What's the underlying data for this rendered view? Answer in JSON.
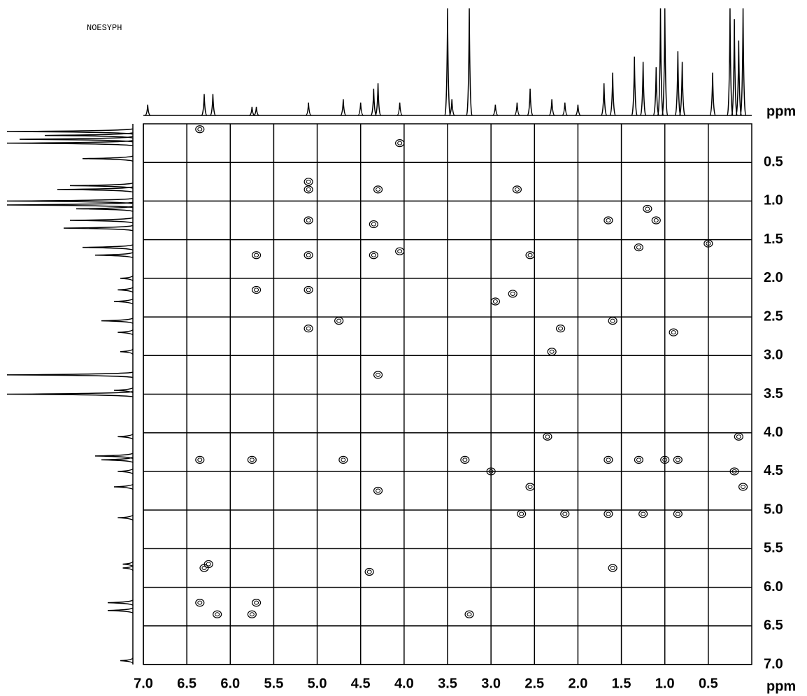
{
  "chart_data": {
    "type": "nmr2d",
    "title": "NOESYPH",
    "xlabel": "ppm",
    "ylabel": "ppm",
    "xlim": [
      7.0,
      0.0
    ],
    "ylim": [
      0.0,
      7.0
    ],
    "xticks": [
      {
        "value": 7,
        "label": "7.0"
      },
      6.5,
      {
        "value": 6,
        "label": "6.0"
      },
      5.5,
      {
        "value": 5,
        "label": "5.0"
      },
      4.5,
      {
        "value": 4,
        "label": "4.0"
      },
      3.5,
      {
        "value": 3,
        "label": "3.0"
      },
      2.5,
      {
        "value": 2,
        "label": "2.0"
      },
      1.5,
      {
        "value": 1,
        "label": "1.0"
      },
      0.5
    ],
    "yticks": [
      0.5,
      {
        "value": 1,
        "label": "1.0"
      },
      1.5,
      {
        "value": 2,
        "label": "2.0"
      },
      2.5,
      {
        "value": 3,
        "label": "3.0"
      },
      3.5,
      {
        "value": 4,
        "label": "4.0"
      },
      4.5,
      {
        "value": 5,
        "label": "5.0"
      },
      5.5,
      {
        "value": 6,
        "label": "6.0"
      },
      6.5,
      {
        "value": 7,
        "label": "7.0"
      }
    ],
    "grid": true,
    "color": "#000000",
    "projection": {
      "x": [
        6.95,
        6.3,
        6.2,
        5.75,
        5.7,
        5.1,
        4.7,
        4.5,
        4.35,
        4.3,
        4.05,
        3.5,
        3.45,
        3.25,
        2.95,
        2.7,
        2.55,
        2.3,
        2.15,
        2.0,
        1.7,
        1.6,
        1.35,
        1.25,
        1.1,
        1.05,
        1.0,
        0.85,
        0.8,
        0.45,
        0.25,
        0.2,
        0.15,
        0.1
      ],
      "values": [
        10,
        20,
        20,
        8,
        8,
        12,
        15,
        12,
        25,
        30,
        12,
        100,
        15,
        100,
        10,
        12,
        25,
        15,
        12,
        10,
        30,
        40,
        55,
        50,
        45,
        100,
        100,
        60,
        50,
        40,
        100,
        90,
        70,
        100
      ]
    },
    "peaks": {
      "x": [
        6.35,
        6.3,
        6.25,
        6.15,
        6.35,
        5.75,
        5.7,
        5.7,
        5.7,
        5.75,
        6.35,
        5.1,
        5.1,
        5.1,
        5.1,
        5.1,
        4.7,
        4.75,
        4.35,
        4.35,
        4.3,
        4.4,
        4.05,
        4.05,
        4.3,
        3.25,
        3.3,
        2.95,
        2.75,
        2.55,
        2.3,
        2.2,
        2.65,
        2.15,
        1.65,
        1.6,
        1.25,
        1.3,
        1.65,
        1.65,
        1.3,
        1.0,
        0.85,
        0.85,
        1.6,
        0.9,
        0.2,
        0.1,
        0.15,
        2.35,
        2.55,
        3.0,
        2.7,
        4.3,
        5.1,
        0.5,
        1.1,
        1.2
      ],
      "values": [
        0.07,
        5.75,
        5.7,
        6.35,
        6.2,
        6.35,
        6.2,
        1.7,
        2.15,
        4.35,
        4.35,
        1.25,
        1.7,
        2.15,
        2.65,
        0.85,
        4.35,
        2.55,
        1.3,
        1.7,
        4.75,
        5.8,
        1.65,
        0.25,
        3.25,
        6.35,
        4.35,
        2.3,
        2.2,
        1.7,
        2.95,
        2.65,
        5.05,
        5.05,
        5.05,
        5.75,
        5.05,
        4.35,
        4.35,
        1.25,
        1.6,
        4.35,
        4.35,
        5.05,
        2.55,
        2.7,
        4.5,
        4.7,
        4.05,
        4.05,
        4.7,
        4.5,
        0.85,
        0.85,
        0.75,
        1.55,
        1.25,
        1.1
      ]
    }
  }
}
